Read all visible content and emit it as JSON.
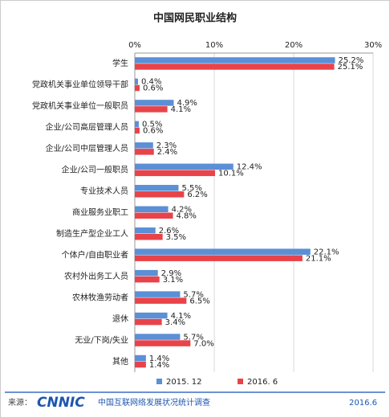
{
  "chart_data": {
    "type": "hbar",
    "title": "中国网民职业结构",
    "categories": [
      "学生",
      "党政机关事业单位领导干部",
      "党政机关事业单位一般职员",
      "企业/公司高层管理人员",
      "企业/公司中层管理人员",
      "企业/公司一般职员",
      "专业技术人员",
      "商业服务业职工",
      "制造生产型企业工人",
      "个体户/自由职业者",
      "农村外出务工人员",
      "农林牧渔劳动者",
      "退休",
      "无业/下岗/失业",
      "其他"
    ],
    "series": [
      {
        "name": "2015. 12",
        "color": "#5b8fd6",
        "values": [
          25.2,
          0.4,
          4.9,
          0.5,
          2.3,
          12.4,
          5.5,
          4.2,
          2.6,
          22.1,
          2.9,
          5.7,
          4.1,
          5.7,
          1.4
        ],
        "value_labels": [
          "25.2%",
          "0.4%",
          "4.9%",
          "0.5%",
          "2.3%",
          "12.4%",
          "5.5%",
          "4.2%",
          "2.6%",
          "22.1%",
          "2.9%",
          "5.7%",
          "4.1%",
          "5.7%",
          "1.4%"
        ]
      },
      {
        "name": "2016. 6",
        "color": "#e8434a",
        "values": [
          25.1,
          0.6,
          4.1,
          0.6,
          2.4,
          10.1,
          6.2,
          4.8,
          3.5,
          21.1,
          3.1,
          6.5,
          3.4,
          7,
          1.4
        ],
        "value_labels": [
          "25.1%",
          "0.6%",
          "4.1%",
          "0.6%",
          "2.4%",
          "10.1%",
          "6.2%",
          "4.8%",
          "3.5%",
          "21.1%",
          "3.1%",
          "6.5%",
          "3.4%",
          "7.0%",
          "1.4%"
        ]
      }
    ],
    "xlim": [
      0,
      30
    ],
    "xticks": [
      {
        "value": 0,
        "label": "0%"
      },
      {
        "value": 10,
        "label": "10%"
      },
      {
        "value": 20,
        "label": "20%"
      },
      {
        "value": 30,
        "label": "30%"
      }
    ],
    "grid": true
  },
  "footer": {
    "source_label": "来源：",
    "logo": "CNNIC",
    "survey": "中国互联网络发展状况统计调查",
    "date": "2016.6"
  }
}
